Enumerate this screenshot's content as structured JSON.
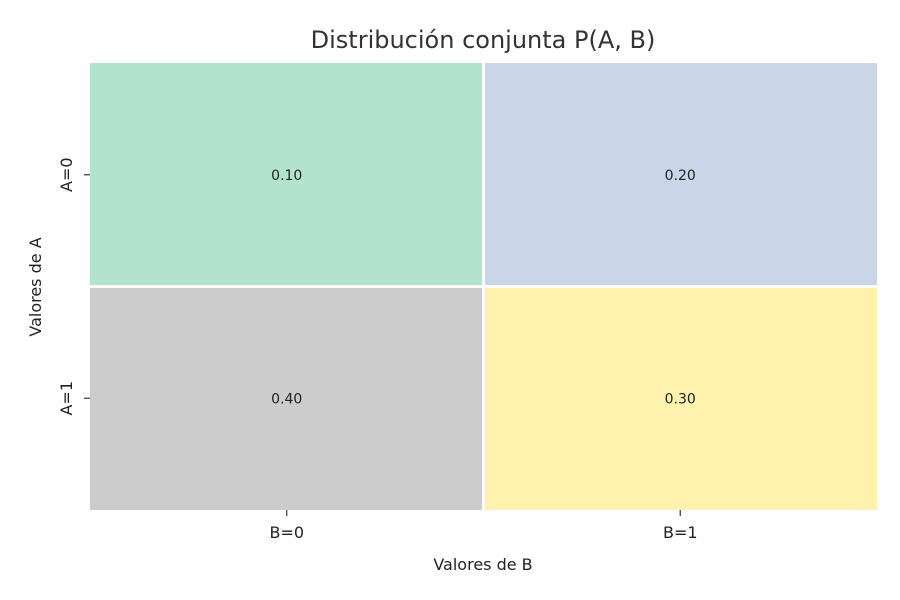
{
  "chart_data": {
    "type": "heatmap",
    "title": "Distribución conjunta P(A, B)",
    "xlabel": "Valores de B",
    "ylabel": "Valores de A",
    "x_categories": [
      "B=0",
      "B=1"
    ],
    "y_categories": [
      "A=0",
      "A=1"
    ],
    "values": [
      [
        0.1,
        0.2
      ],
      [
        0.4,
        0.3
      ]
    ],
    "value_labels": [
      [
        "0.10",
        "0.20"
      ],
      [
        "0.40",
        "0.30"
      ]
    ],
    "cell_colors": [
      [
        "#b3e2cd",
        "#cbd5e8"
      ],
      [
        "#cccccc",
        "#fff2ae"
      ]
    ],
    "colorbar": false,
    "grid": false
  }
}
